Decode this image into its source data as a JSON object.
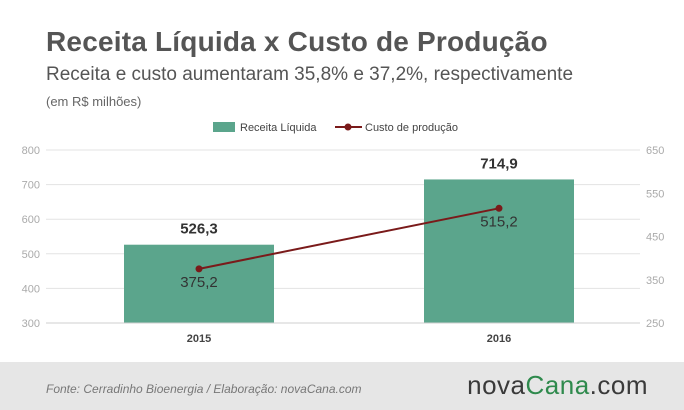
{
  "header": {
    "title": "Receita Líquida x Custo de Produção",
    "subtitle": "Receita e custo aumentaram 35,8% e 37,2%, respectivamente",
    "unit_note": "(em R$ milhões)"
  },
  "footer": {
    "source": "Fonte: Cerradinho Bioenergia / Elaboração: novaCana.com",
    "brand_part1": "nova",
    "brand_part2": "Cana",
    "brand_part3": ".com"
  },
  "colors": {
    "bar": "#5ba58c",
    "line": "#7a1a1a",
    "grid": "#e3e3e3",
    "tick": "#aaaaaa",
    "label": "#333333"
  },
  "chart_data": {
    "type": "bar+line",
    "categories": [
      "2015",
      "2016"
    ],
    "series": [
      {
        "name": "Receita Líquida",
        "type": "bar",
        "axis": "left",
        "values": [
          526.3,
          714.9
        ],
        "labels": [
          "526,3",
          "714,9"
        ]
      },
      {
        "name": "Custo de produção",
        "type": "line",
        "axis": "right",
        "values": [
          375.2,
          515.2
        ],
        "labels": [
          "375,2",
          "515,2"
        ]
      }
    ],
    "y_left": {
      "min": 300,
      "max": 800,
      "ticks": [
        "300",
        "400",
        "500",
        "600",
        "700",
        "800"
      ]
    },
    "y_right": {
      "min": 250,
      "max": 650,
      "ticks": [
        "250",
        "350",
        "450",
        "550",
        "650"
      ]
    },
    "legend": "top-center",
    "grid": true
  }
}
